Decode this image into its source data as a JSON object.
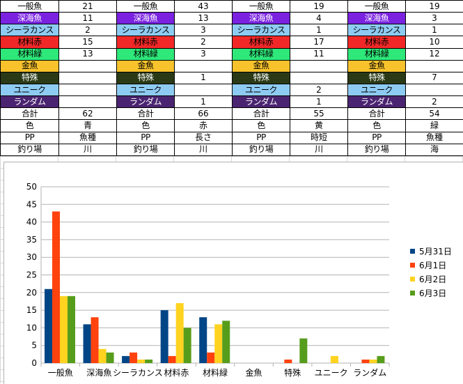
{
  "table": {
    "fish_rows": [
      {
        "label": "一般魚",
        "values": [
          "21",
          "43",
          "19",
          "19"
        ]
      },
      {
        "label": "深海魚",
        "values": [
          "11",
          "13",
          "4",
          "3"
        ]
      },
      {
        "label": "シーラカンス",
        "values": [
          "2",
          "3",
          "1",
          "1"
        ]
      },
      {
        "label": "材料赤",
        "values": [
          "15",
          "2",
          "17",
          "10"
        ]
      },
      {
        "label": "材料緑",
        "values": [
          "13",
          "3",
          "11",
          "12"
        ]
      },
      {
        "label": "金魚",
        "values": [
          "",
          "",
          "",
          ""
        ]
      },
      {
        "label": "特殊",
        "values": [
          "",
          "1",
          "",
          "7"
        ]
      },
      {
        "label": "ユニーク",
        "values": [
          "",
          "",
          "2",
          ""
        ]
      },
      {
        "label": "ランダム",
        "values": [
          "",
          "1",
          "1",
          "2"
        ]
      }
    ],
    "summary_rows": [
      {
        "label": "合計",
        "values": [
          "62",
          "66",
          "55",
          "54"
        ]
      },
      {
        "label": "色",
        "values": [
          "青",
          "赤",
          "黄",
          "緑"
        ]
      },
      {
        "label": "PP",
        "values": [
          "魚種",
          "長さ",
          "時短",
          "魚種"
        ]
      },
      {
        "label": "釣り場",
        "values": [
          "川",
          "川",
          "川",
          "海"
        ]
      }
    ],
    "row_colors": [
      {
        "bg": "#ffffff",
        "fg": "#000000"
      },
      {
        "bg": "#7a22e0",
        "fg": "#ffffff"
      },
      {
        "bg": "#8ecbf2",
        "fg": "#000000"
      },
      {
        "bg": "#f22828",
        "fg": "#000000"
      },
      {
        "bg": "#2ee87a",
        "fg": "#000000"
      },
      {
        "bg": "#f7c22c",
        "fg": "#000000"
      },
      {
        "bg": "#2b3a16",
        "fg": "#ffffff"
      },
      {
        "bg": "#8ecbf2",
        "fg": "#000000"
      },
      {
        "bg": "#4a2470",
        "fg": "#ffffff"
      }
    ]
  },
  "chart_data": {
    "type": "bar",
    "categories": [
      "一般魚",
      "深海魚",
      "シーラカンス",
      "材料赤",
      "材料緑",
      "金魚",
      "特殊",
      "ユニーク",
      "ランダム"
    ],
    "series": [
      {
        "name": "5月31日",
        "color": "#004586",
        "values": [
          21,
          11,
          2,
          15,
          13,
          0,
          0,
          0,
          0
        ]
      },
      {
        "name": "6月1日",
        "color": "#ff420e",
        "values": [
          43,
          13,
          3,
          2,
          3,
          0,
          1,
          0,
          1
        ]
      },
      {
        "name": "6月2日",
        "color": "#ffd320",
        "values": [
          19,
          4,
          1,
          17,
          11,
          0,
          0,
          2,
          1
        ]
      },
      {
        "name": "6月3日",
        "color": "#579d1c",
        "values": [
          19,
          3,
          1,
          10,
          12,
          0,
          7,
          0,
          2
        ]
      }
    ],
    "ylim": [
      0,
      50
    ],
    "yticks": [
      "0",
      "5",
      "10",
      "15",
      "20",
      "25",
      "30",
      "35",
      "40",
      "45",
      "50"
    ],
    "grid": true,
    "legend": "right"
  }
}
